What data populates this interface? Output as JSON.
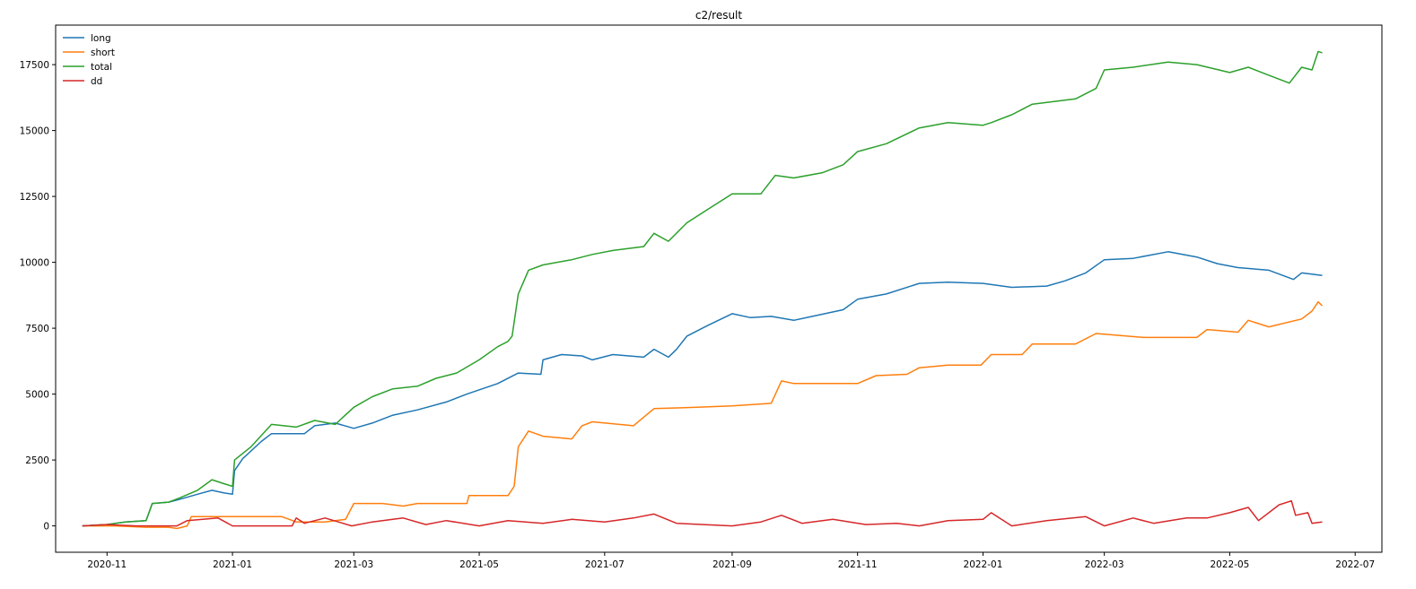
{
  "chart_data": {
    "type": "line",
    "title": "c2/result",
    "xlabel": "",
    "ylabel": "",
    "legend_position": "top-left",
    "grid": false,
    "x_type": "date",
    "xlim": [
      "2020-10-07",
      "2022-07-14"
    ],
    "ylim": [
      -1000,
      19000
    ],
    "x_ticks": [
      {
        "date": "2020-11-01",
        "label": "2020-11"
      },
      {
        "date": "2021-01-01",
        "label": "2021-01"
      },
      {
        "date": "2021-03-01",
        "label": "2021-03"
      },
      {
        "date": "2021-05-01",
        "label": "2021-05"
      },
      {
        "date": "2021-07-01",
        "label": "2021-07"
      },
      {
        "date": "2021-09-01",
        "label": "2021-09"
      },
      {
        "date": "2021-11-01",
        "label": "2021-11"
      },
      {
        "date": "2022-01-01",
        "label": "2022-01"
      },
      {
        "date": "2022-03-01",
        "label": "2022-03"
      },
      {
        "date": "2022-05-01",
        "label": "2022-05"
      },
      {
        "date": "2022-07-01",
        "label": "2022-07"
      }
    ],
    "y_ticks": [
      {
        "value": 0,
        "label": "0"
      },
      {
        "value": 2500,
        "label": "2500"
      },
      {
        "value": 5000,
        "label": "5000"
      },
      {
        "value": 7500,
        "label": "7500"
      },
      {
        "value": 10000,
        "label": "10000"
      },
      {
        "value": 12500,
        "label": "12500"
      },
      {
        "value": 15000,
        "label": "15000"
      },
      {
        "value": 17500,
        "label": "17500"
      }
    ],
    "series": [
      {
        "name": "long",
        "color": "#1f77b4",
        "points": [
          [
            "2020-10-20",
            0
          ],
          [
            "2020-11-01",
            50
          ],
          [
            "2020-11-10",
            150
          ],
          [
            "2020-11-20",
            200
          ],
          [
            "2020-11-23",
            850
          ],
          [
            "2020-12-01",
            900
          ],
          [
            "2020-12-06",
            1000
          ],
          [
            "2020-12-15",
            1200
          ],
          [
            "2020-12-22",
            1350
          ],
          [
            "2020-12-28",
            1250
          ],
          [
            "2021-01-01",
            1200
          ],
          [
            "2021-01-02",
            2100
          ],
          [
            "2021-01-06",
            2550
          ],
          [
            "2021-01-15",
            3200
          ],
          [
            "2021-01-20",
            3500
          ],
          [
            "2021-02-05",
            3500
          ],
          [
            "2021-02-10",
            3800
          ],
          [
            "2021-02-20",
            3900
          ],
          [
            "2021-03-01",
            3700
          ],
          [
            "2021-03-10",
            3900
          ],
          [
            "2021-03-20",
            4200
          ],
          [
            "2021-04-01",
            4400
          ],
          [
            "2021-04-15",
            4700
          ],
          [
            "2021-04-25",
            5000
          ],
          [
            "2021-05-10",
            5400
          ],
          [
            "2021-05-20",
            5800
          ],
          [
            "2021-05-31",
            5750
          ],
          [
            "2021-06-01",
            6300
          ],
          [
            "2021-06-10",
            6500
          ],
          [
            "2021-06-20",
            6450
          ],
          [
            "2021-06-25",
            6300
          ],
          [
            "2021-07-05",
            6500
          ],
          [
            "2021-07-20",
            6400
          ],
          [
            "2021-07-25",
            6700
          ],
          [
            "2021-08-01",
            6400
          ],
          [
            "2021-08-05",
            6700
          ],
          [
            "2021-08-10",
            7200
          ],
          [
            "2021-08-20",
            7600
          ],
          [
            "2021-09-01",
            8050
          ],
          [
            "2021-09-10",
            7900
          ],
          [
            "2021-09-20",
            7950
          ],
          [
            "2021-10-01",
            7800
          ],
          [
            "2021-10-10",
            7950
          ],
          [
            "2021-10-25",
            8200
          ],
          [
            "2021-11-01",
            8600
          ],
          [
            "2021-11-15",
            8800
          ],
          [
            "2021-12-01",
            9200
          ],
          [
            "2021-12-15",
            9250
          ],
          [
            "2022-01-01",
            9200
          ],
          [
            "2022-01-15",
            9050
          ],
          [
            "2022-02-01",
            9100
          ],
          [
            "2022-02-10",
            9300
          ],
          [
            "2022-02-20",
            9600
          ],
          [
            "2022-03-01",
            10100
          ],
          [
            "2022-03-15",
            10150
          ],
          [
            "2022-04-01",
            10400
          ],
          [
            "2022-04-15",
            10200
          ],
          [
            "2022-04-25",
            9950
          ],
          [
            "2022-05-05",
            9800
          ],
          [
            "2022-05-20",
            9700
          ],
          [
            "2022-06-01",
            9350
          ],
          [
            "2022-06-05",
            9600
          ],
          [
            "2022-06-15",
            9500
          ]
        ]
      },
      {
        "name": "short",
        "color": "#ff7f0e",
        "points": [
          [
            "2020-10-20",
            0
          ],
          [
            "2020-11-05",
            0
          ],
          [
            "2020-11-20",
            -50
          ],
          [
            "2020-12-01",
            -50
          ],
          [
            "2020-12-05",
            -100
          ],
          [
            "2020-12-10",
            0
          ],
          [
            "2020-12-12",
            350
          ],
          [
            "2021-01-15",
            350
          ],
          [
            "2021-01-25",
            350
          ],
          [
            "2021-02-01",
            150
          ],
          [
            "2021-02-15",
            150
          ],
          [
            "2021-02-25",
            250
          ],
          [
            "2021-03-01",
            850
          ],
          [
            "2021-03-15",
            850
          ],
          [
            "2021-03-25",
            750
          ],
          [
            "2021-04-01",
            850
          ],
          [
            "2021-04-25",
            850
          ],
          [
            "2021-04-26",
            1150
          ],
          [
            "2021-05-15",
            1150
          ],
          [
            "2021-05-18",
            1500
          ],
          [
            "2021-05-20",
            3000
          ],
          [
            "2021-05-25",
            3600
          ],
          [
            "2021-06-01",
            3400
          ],
          [
            "2021-06-15",
            3300
          ],
          [
            "2021-06-20",
            3800
          ],
          [
            "2021-06-25",
            3950
          ],
          [
            "2021-07-15",
            3800
          ],
          [
            "2021-07-25",
            4450
          ],
          [
            "2021-08-15",
            4500
          ],
          [
            "2021-09-01",
            4550
          ],
          [
            "2021-09-20",
            4650
          ],
          [
            "2021-09-25",
            5500
          ],
          [
            "2021-10-01",
            5400
          ],
          [
            "2021-11-01",
            5400
          ],
          [
            "2021-11-10",
            5700
          ],
          [
            "2021-11-25",
            5750
          ],
          [
            "2021-12-01",
            6000
          ],
          [
            "2021-12-15",
            6100
          ],
          [
            "2021-12-31",
            6100
          ],
          [
            "2022-01-05",
            6500
          ],
          [
            "2022-01-20",
            6500
          ],
          [
            "2022-01-25",
            6900
          ],
          [
            "2022-02-15",
            6900
          ],
          [
            "2022-02-25",
            7300
          ],
          [
            "2022-03-20",
            7150
          ],
          [
            "2022-04-15",
            7150
          ],
          [
            "2022-04-20",
            7450
          ],
          [
            "2022-05-05",
            7350
          ],
          [
            "2022-05-10",
            7800
          ],
          [
            "2022-05-20",
            7550
          ],
          [
            "2022-06-05",
            7850
          ],
          [
            "2022-06-10",
            8150
          ],
          [
            "2022-06-13",
            8500
          ],
          [
            "2022-06-15",
            8350
          ]
        ]
      },
      {
        "name": "total",
        "color": "#2ca02c",
        "points": [
          [
            "2020-10-20",
            0
          ],
          [
            "2020-11-01",
            50
          ],
          [
            "2020-11-10",
            150
          ],
          [
            "2020-11-20",
            200
          ],
          [
            "2020-11-23",
            850
          ],
          [
            "2020-12-01",
            900
          ],
          [
            "2020-12-06",
            1050
          ],
          [
            "2020-12-15",
            1350
          ],
          [
            "2020-12-22",
            1750
          ],
          [
            "2020-12-28",
            1600
          ],
          [
            "2021-01-01",
            1500
          ],
          [
            "2021-01-02",
            2500
          ],
          [
            "2021-01-10",
            3000
          ],
          [
            "2021-01-20",
            3850
          ],
          [
            "2021-02-01",
            3750
          ],
          [
            "2021-02-10",
            4000
          ],
          [
            "2021-02-20",
            3850
          ],
          [
            "2021-03-01",
            4500
          ],
          [
            "2021-03-10",
            4900
          ],
          [
            "2021-03-20",
            5200
          ],
          [
            "2021-04-01",
            5300
          ],
          [
            "2021-04-10",
            5600
          ],
          [
            "2021-04-20",
            5800
          ],
          [
            "2021-05-01",
            6300
          ],
          [
            "2021-05-10",
            6800
          ],
          [
            "2021-05-15",
            7000
          ],
          [
            "2021-05-17",
            7200
          ],
          [
            "2021-05-20",
            8800
          ],
          [
            "2021-05-25",
            9700
          ],
          [
            "2021-06-01",
            9900
          ],
          [
            "2021-06-15",
            10100
          ],
          [
            "2021-06-25",
            10300
          ],
          [
            "2021-07-05",
            10450
          ],
          [
            "2021-07-20",
            10600
          ],
          [
            "2021-07-25",
            11100
          ],
          [
            "2021-08-01",
            10800
          ],
          [
            "2021-08-10",
            11500
          ],
          [
            "2021-08-20",
            12000
          ],
          [
            "2021-09-01",
            12600
          ],
          [
            "2021-09-15",
            12600
          ],
          [
            "2021-09-22",
            13300
          ],
          [
            "2021-10-01",
            13200
          ],
          [
            "2021-10-15",
            13400
          ],
          [
            "2021-10-25",
            13700
          ],
          [
            "2021-11-01",
            14200
          ],
          [
            "2021-11-15",
            14500
          ],
          [
            "2021-12-01",
            15100
          ],
          [
            "2021-12-15",
            15300
          ],
          [
            "2022-01-01",
            15200
          ],
          [
            "2022-01-05",
            15300
          ],
          [
            "2022-01-15",
            15600
          ],
          [
            "2022-01-25",
            16000
          ],
          [
            "2022-02-15",
            16200
          ],
          [
            "2022-02-25",
            16600
          ],
          [
            "2022-03-01",
            17300
          ],
          [
            "2022-03-15",
            17400
          ],
          [
            "2022-04-01",
            17600
          ],
          [
            "2022-04-15",
            17500
          ],
          [
            "2022-05-01",
            17200
          ],
          [
            "2022-05-10",
            17400
          ],
          [
            "2022-05-20",
            17100
          ],
          [
            "2022-05-30",
            16800
          ],
          [
            "2022-06-05",
            17400
          ],
          [
            "2022-06-10",
            17300
          ],
          [
            "2022-06-13",
            18000
          ],
          [
            "2022-06-15",
            17950
          ]
        ]
      },
      {
        "name": "dd",
        "color": "#d62728",
        "points": [
          [
            "2020-10-20",
            0
          ],
          [
            "2020-11-01",
            50
          ],
          [
            "2020-11-15",
            0
          ],
          [
            "2020-12-05",
            0
          ],
          [
            "2020-12-10",
            200
          ],
          [
            "2020-12-25",
            300
          ],
          [
            "2021-01-01",
            0
          ],
          [
            "2021-01-30",
            0
          ],
          [
            "2021-02-01",
            300
          ],
          [
            "2021-02-05",
            100
          ],
          [
            "2021-02-15",
            300
          ],
          [
            "2021-02-28",
            0
          ],
          [
            "2021-03-10",
            150
          ],
          [
            "2021-03-25",
            300
          ],
          [
            "2021-04-05",
            50
          ],
          [
            "2021-04-15",
            200
          ],
          [
            "2021-05-01",
            0
          ],
          [
            "2021-05-15",
            200
          ],
          [
            "2021-06-01",
            100
          ],
          [
            "2021-06-15",
            250
          ],
          [
            "2021-07-01",
            150
          ],
          [
            "2021-07-15",
            300
          ],
          [
            "2021-07-25",
            450
          ],
          [
            "2021-08-05",
            100
          ],
          [
            "2021-09-01",
            0
          ],
          [
            "2021-09-15",
            150
          ],
          [
            "2021-09-25",
            400
          ],
          [
            "2021-10-05",
            100
          ],
          [
            "2021-10-20",
            250
          ],
          [
            "2021-11-05",
            50
          ],
          [
            "2021-11-20",
            100
          ],
          [
            "2021-12-01",
            0
          ],
          [
            "2021-12-15",
            200
          ],
          [
            "2022-01-01",
            250
          ],
          [
            "2022-01-05",
            500
          ],
          [
            "2022-01-15",
            0
          ],
          [
            "2022-02-01",
            200
          ],
          [
            "2022-02-20",
            350
          ],
          [
            "2022-03-01",
            0
          ],
          [
            "2022-03-15",
            300
          ],
          [
            "2022-03-25",
            100
          ],
          [
            "2022-04-10",
            300
          ],
          [
            "2022-04-20",
            300
          ],
          [
            "2022-05-01",
            500
          ],
          [
            "2022-05-10",
            700
          ],
          [
            "2022-05-15",
            200
          ],
          [
            "2022-05-25",
            800
          ],
          [
            "2022-05-31",
            950
          ],
          [
            "2022-06-02",
            400
          ],
          [
            "2022-06-08",
            500
          ],
          [
            "2022-06-10",
            100
          ],
          [
            "2022-06-15",
            150
          ]
        ]
      }
    ]
  }
}
